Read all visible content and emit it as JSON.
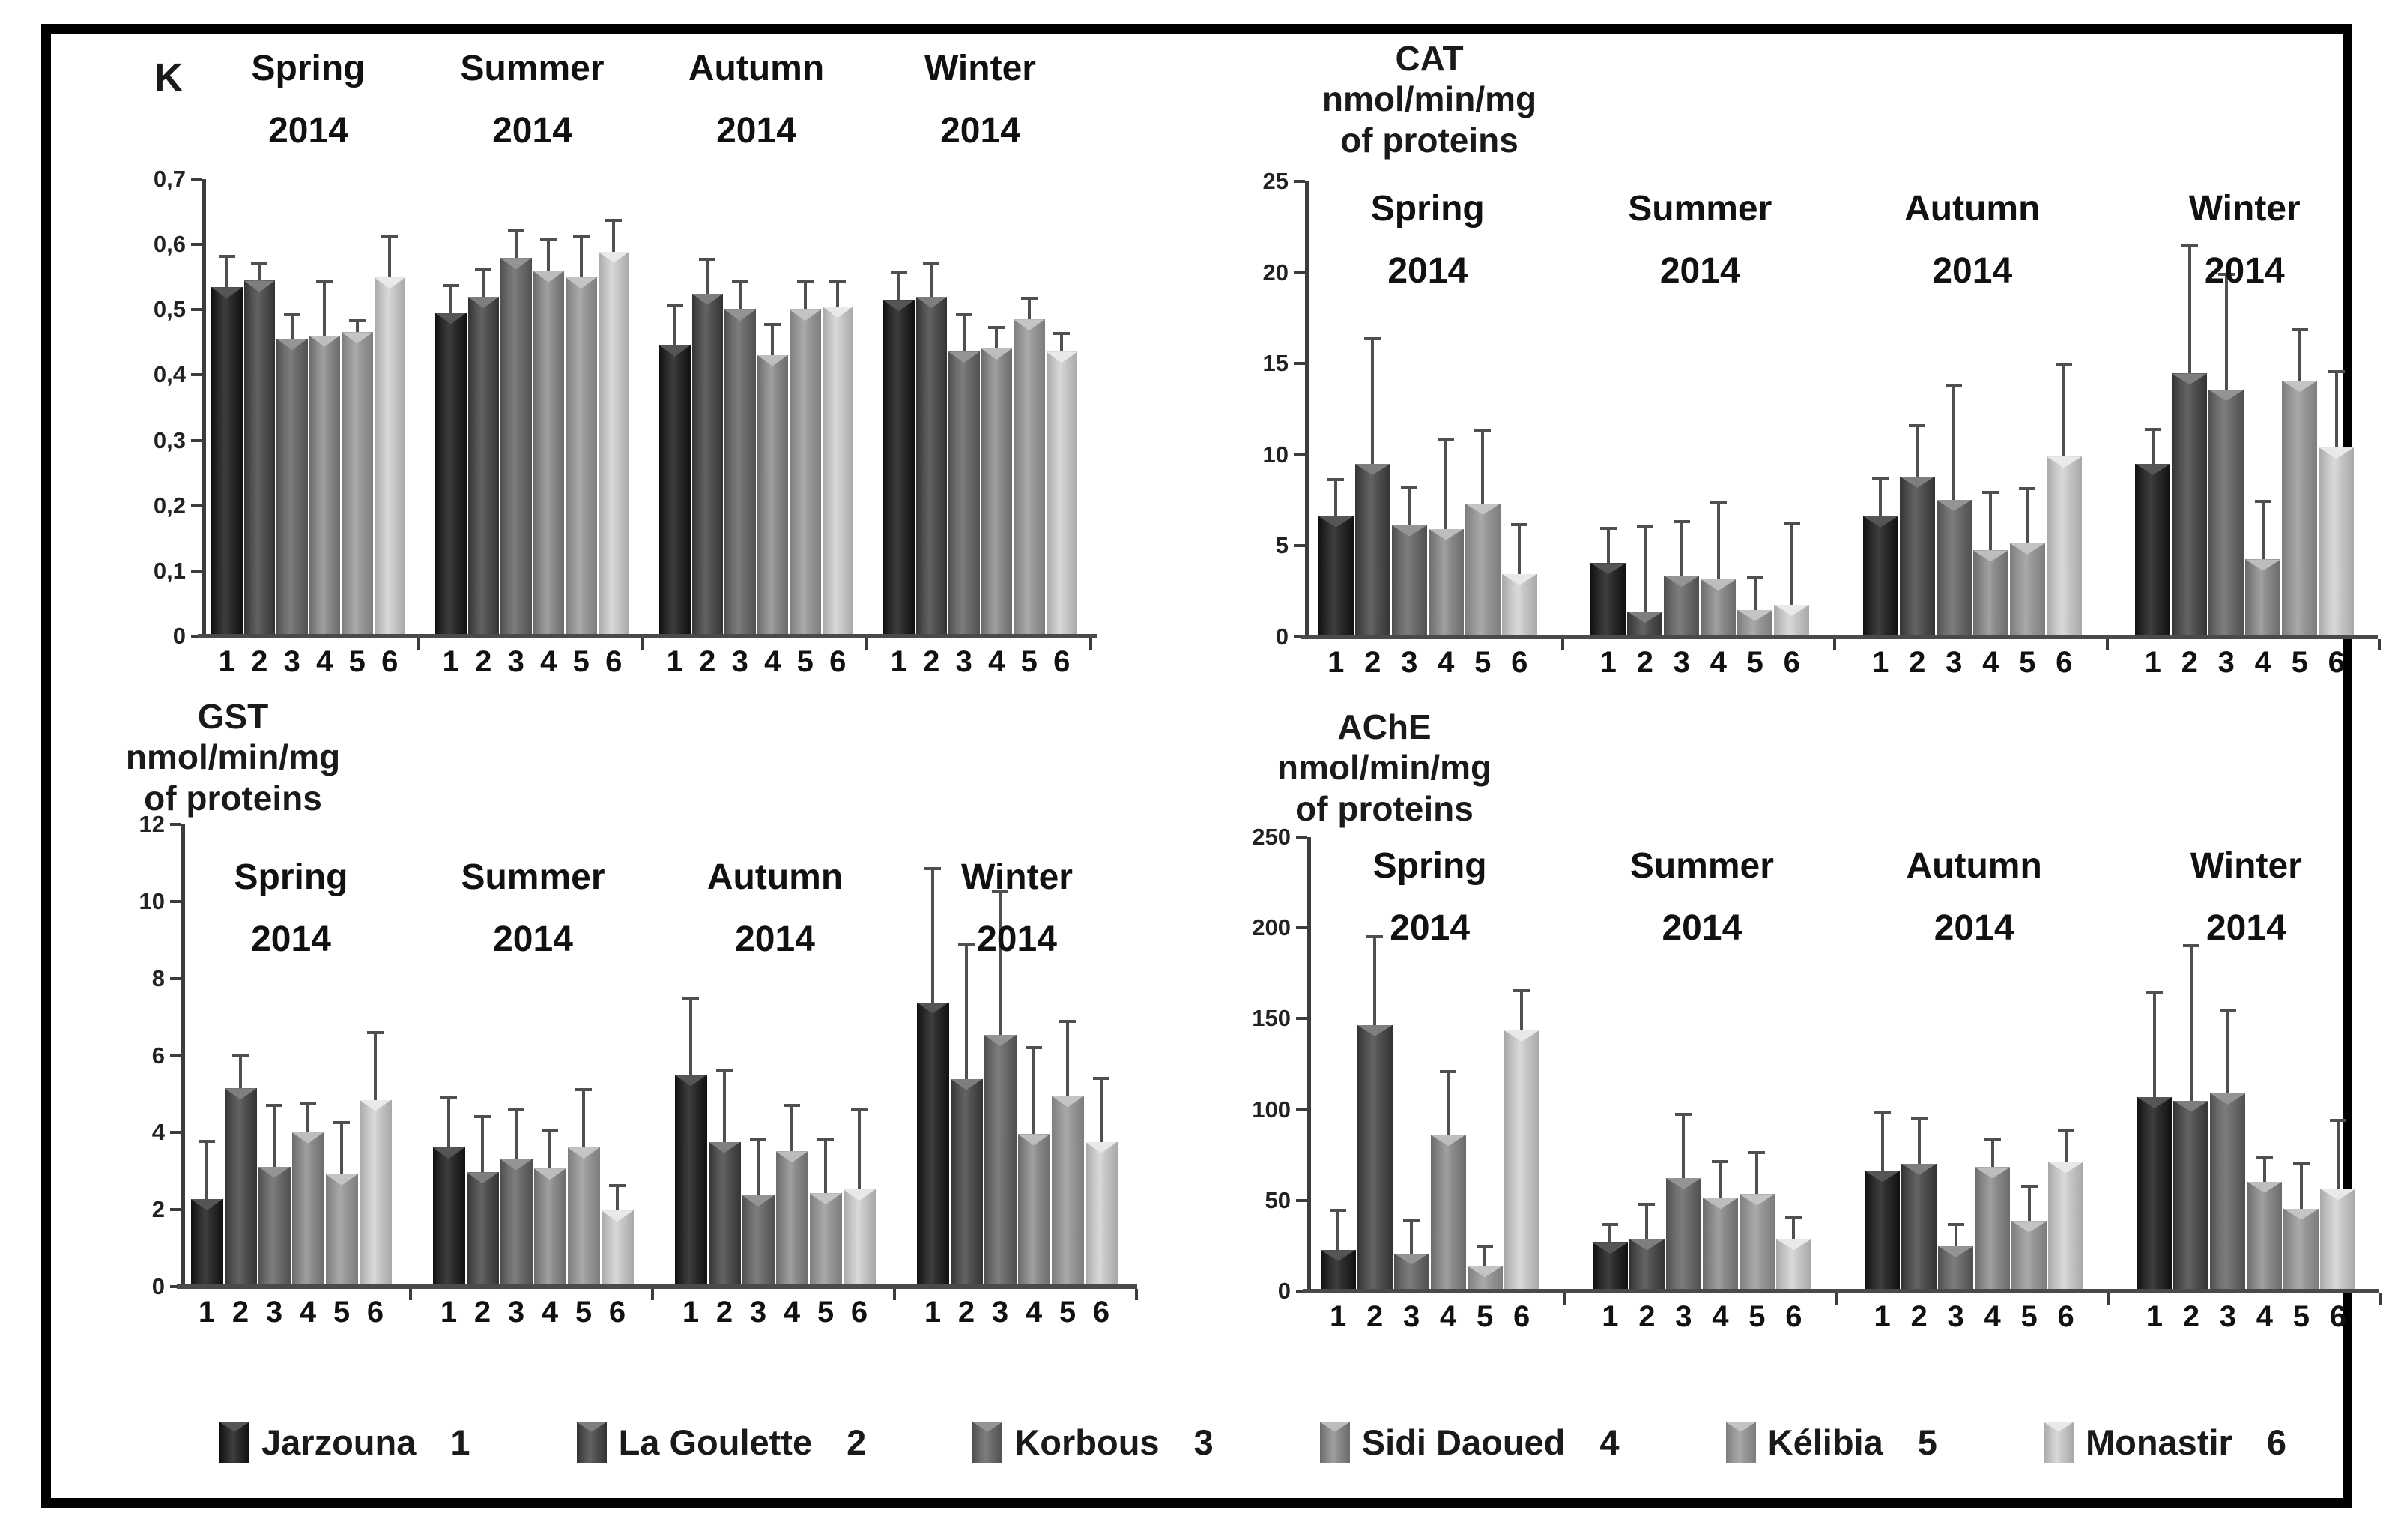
{
  "figure": {
    "description": "Seasonal biomarker bar charts for six sites, error bars show +SD",
    "grid": false,
    "legend_position": "bottom"
  },
  "legend": [
    {
      "label": "Jarzouna",
      "number": "1"
    },
    {
      "label": "La Goulette",
      "number": "2"
    },
    {
      "label": "Korbous",
      "number": "3"
    },
    {
      "label": "Sidi Daoued",
      "number": "4"
    },
    {
      "label": "Kélibia",
      "number": "5"
    },
    {
      "label": "Monastir",
      "number": "6"
    }
  ],
  "site_palette": [
    {
      "edge": "#101010",
      "mid": "#2d2d2d",
      "hi": "#3e3e3e",
      "notch": "#555555"
    },
    {
      "edge": "#333333",
      "mid": "#525252",
      "hi": "#636363",
      "notch": "#7e7e7e"
    },
    {
      "edge": "#4f4f4f",
      "mid": "#6e6e6e",
      "hi": "#7d7d7d",
      "notch": "#949494"
    },
    {
      "edge": "#6b6b6b",
      "mid": "#8b8b8b",
      "hi": "#a0a0a0",
      "notch": "#bdbdbd"
    },
    {
      "edge": "#7d7d7d",
      "mid": "#989898",
      "hi": "#a9a9a9",
      "notch": "#c4c4c4"
    },
    {
      "edge": "#a8a8a8",
      "mid": "#c7c7c7",
      "hi": "#d9d9d9",
      "notch": "#e9e9e9"
    }
  ],
  "axis_color": "#3c3c3c",
  "error_bar_color": "#4f4f4f",
  "chart_data": [
    {
      "id": "k",
      "type": "bar",
      "title_lines": [
        "K"
      ],
      "ylabel": "K",
      "ylim": [
        0,
        0.7
      ],
      "ymax": 0.7,
      "ytick_labels": [
        "0,7",
        "0,6",
        "0,5",
        "0,4",
        "0,3",
        "0,2",
        "0,1",
        "0"
      ],
      "categories": [
        "1",
        "2",
        "3",
        "4",
        "5",
        "6"
      ],
      "groups": [
        {
          "season": "Spring",
          "year": "2014",
          "values": [
            0.54,
            0.55,
            0.46,
            0.465,
            0.47,
            0.555
          ],
          "errors_top": [
            0.59,
            0.58,
            0.5,
            0.55,
            0.49,
            0.62
          ]
        },
        {
          "season": "Summer",
          "year": "2014",
          "values": [
            0.5,
            0.525,
            0.585,
            0.565,
            0.555,
            0.595
          ],
          "errors_top": [
            0.545,
            0.57,
            0.63,
            0.615,
            0.62,
            0.645
          ]
        },
        {
          "season": "Autumn",
          "year": "2014",
          "values": [
            0.45,
            0.53,
            0.505,
            0.435,
            0.505,
            0.51
          ],
          "errors_top": [
            0.515,
            0.585,
            0.55,
            0.485,
            0.55,
            0.55
          ]
        },
        {
          "season": "Winter",
          "year": "2014",
          "values": [
            0.52,
            0.525,
            0.44,
            0.445,
            0.49,
            0.44
          ],
          "errors_top": [
            0.565,
            0.58,
            0.5,
            0.48,
            0.525,
            0.47
          ]
        }
      ]
    },
    {
      "id": "cat",
      "type": "bar",
      "title_lines": [
        "CAT",
        "nmol/min/mg",
        "of proteins"
      ],
      "ylabel": "CAT nmol/min/mg of proteins",
      "ylim": [
        0,
        25
      ],
      "ymax": 25,
      "ytick_labels": [
        "25",
        "20",
        "15",
        "10",
        "5",
        "0"
      ],
      "categories": [
        "1",
        "2",
        "3",
        "4",
        "5",
        "6"
      ],
      "groups": [
        {
          "season": "Spring",
          "year": "2014",
          "values": [
            6.7,
            9.6,
            6.2,
            6.0,
            7.4,
            3.5
          ],
          "errors_top": [
            8.8,
            16.6,
            8.4,
            11.0,
            11.5,
            6.3
          ]
        },
        {
          "season": "Summer",
          "year": "2014",
          "values": [
            4.1,
            1.4,
            3.4,
            3.2,
            1.5,
            1.8
          ],
          "errors_top": [
            6.1,
            6.2,
            6.5,
            7.5,
            3.4,
            6.4
          ]
        },
        {
          "season": "Autumn",
          "year": "2014",
          "values": [
            6.7,
            8.9,
            7.6,
            4.8,
            5.2,
            10.0
          ],
          "errors_top": [
            8.9,
            11.8,
            14.0,
            8.1,
            8.3,
            15.2
          ]
        },
        {
          "season": "Winter",
          "year": "2014",
          "values": [
            9.6,
            14.6,
            13.7,
            4.3,
            14.2,
            10.5
          ],
          "errors_top": [
            11.6,
            21.8,
            20.2,
            7.6,
            17.1,
            14.8
          ]
        }
      ]
    },
    {
      "id": "gst",
      "type": "bar",
      "title_lines": [
        "GST",
        "nmol/min/mg",
        "of proteins"
      ],
      "ylabel": "GST nmol/min/mg of proteins",
      "ylim": [
        0,
        12
      ],
      "ymax": 12,
      "ytick_labels": [
        "12",
        "10",
        "8",
        "6",
        "4",
        "2",
        "0"
      ],
      "categories": [
        "1",
        "2",
        "3",
        "4",
        "5",
        "6"
      ],
      "groups": [
        {
          "season": "Spring",
          "year": "2014",
          "values": [
            2.3,
            5.2,
            3.15,
            4.05,
            2.95,
            4.9
          ],
          "errors_top": [
            3.85,
            6.1,
            4.8,
            4.85,
            4.35,
            6.7
          ]
        },
        {
          "season": "Summer",
          "year": "2014",
          "values": [
            3.65,
            3.0,
            3.35,
            3.1,
            3.65,
            2.0
          ],
          "errors_top": [
            5.0,
            4.5,
            4.7,
            4.15,
            5.2,
            2.7
          ]
        },
        {
          "season": "Autumn",
          "year": "2014",
          "values": [
            5.55,
            3.8,
            2.4,
            3.55,
            2.45,
            2.55
          ],
          "errors_top": [
            7.6,
            5.7,
            3.9,
            4.8,
            3.9,
            4.7
          ]
        },
        {
          "season": "Winter",
          "year": "2014",
          "values": [
            7.45,
            5.45,
            6.6,
            4.0,
            5.0,
            3.8
          ],
          "errors_top": [
            11.0,
            9.0,
            10.4,
            6.3,
            7.0,
            5.5
          ]
        }
      ]
    },
    {
      "id": "ache",
      "type": "bar",
      "title_lines": [
        "AChE",
        "nmol/min/mg",
        "of proteins"
      ],
      "ylabel": "AChE nmol/min/mg of proteins",
      "ylim": [
        0,
        250
      ],
      "ymax": 250,
      "ytick_labels": [
        "250",
        "200",
        "150",
        "100",
        "50",
        "0"
      ],
      "categories": [
        "1",
        "2",
        "3",
        "4",
        "5",
        "6"
      ],
      "groups": [
        {
          "season": "Spring",
          "year": "2014",
          "values": [
            23,
            148,
            21,
            87,
            14,
            145
          ],
          "errors_top": [
            46,
            198,
            40,
            123,
            26,
            168
          ]
        },
        {
          "season": "Summer",
          "year": "2014",
          "values": [
            27,
            29,
            63,
            52,
            54,
            29
          ],
          "errors_top": [
            38,
            49,
            99,
            73,
            78,
            42
          ]
        },
        {
          "season": "Autumn",
          "year": "2014",
          "values": [
            67,
            71,
            25,
            69,
            39,
            72
          ],
          "errors_top": [
            100,
            97,
            38,
            85,
            59,
            90
          ]
        },
        {
          "season": "Winter",
          "year": "2014",
          "values": [
            108,
            106,
            110,
            61,
            46,
            57
          ],
          "errors_top": [
            167,
            193,
            157,
            75,
            72,
            96
          ]
        }
      ]
    }
  ]
}
